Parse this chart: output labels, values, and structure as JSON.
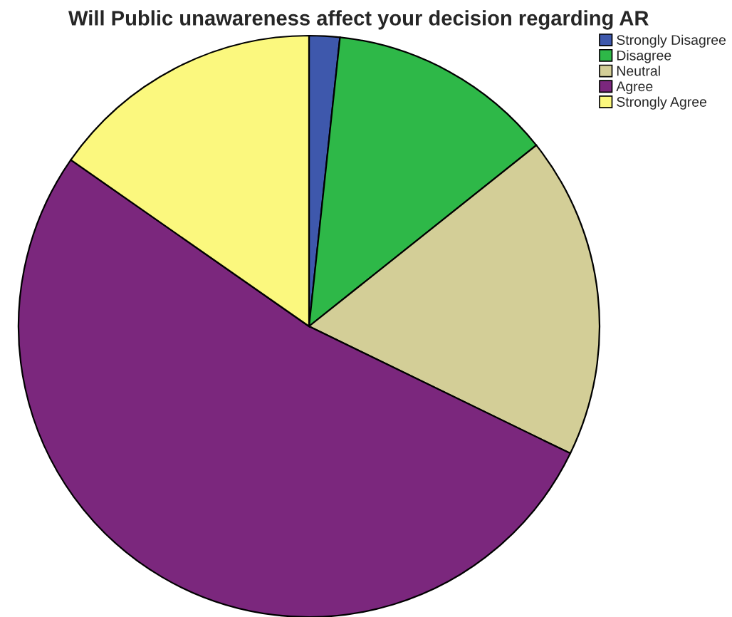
{
  "chart_data": {
    "type": "pie",
    "title": "Will Public unawareness affect your decision regarding AR",
    "categories": [
      "Strongly Disagree",
      "Disagree",
      "Neutral",
      "Agree",
      "Strongly Agree"
    ],
    "values": [
      1.7,
      12.6,
      17.9,
      52.5,
      15.3
    ],
    "colors": [
      "#3e58ac",
      "#2eb848",
      "#d3ce97",
      "#7b277d",
      "#fbf87e"
    ],
    "legend": "top right"
  }
}
